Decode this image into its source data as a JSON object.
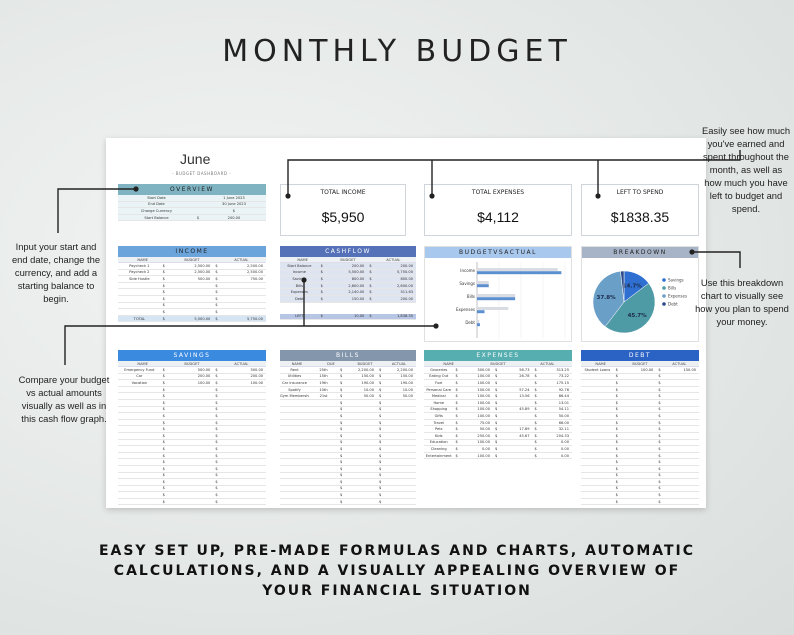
{
  "title": "MONTHLY BUDGET",
  "sheet": {
    "month": "June",
    "subtitle": "- BUDGET DASHBOARD -",
    "overview": {
      "header": "OVERVIEW",
      "rows": [
        {
          "label": "Start Date",
          "value": "1 June 2023",
          "sym": ""
        },
        {
          "label": "End Date",
          "value": "30 June 2023",
          "sym": ""
        },
        {
          "label": "Change Currency",
          "value": "$",
          "sym": ""
        },
        {
          "label": "Start Balance",
          "value": "200.00",
          "sym": "$"
        }
      ]
    },
    "summary": [
      {
        "label": "TOTAL INCOME",
        "value": "$5,950"
      },
      {
        "label": "TOTAL EXPENSES",
        "value": "$4,112"
      },
      {
        "label": "LEFT TO SPEND",
        "value": "$1838.35"
      }
    ],
    "income": {
      "header": "INCOME",
      "cols": [
        "NAME",
        "BUDGET",
        "ACTUAL"
      ],
      "color": "#5b9bd5",
      "rows": [
        [
          "Paycheck 1",
          "$",
          "2,500.00",
          "$",
          "2,500.00"
        ],
        [
          "Paycheck 2",
          "$",
          "2,500.00",
          "$",
          "2,500.00"
        ],
        [
          "Side Hustle",
          "$",
          "500.00",
          "$",
          "750.00"
        ],
        [
          "",
          "$",
          "",
          "$",
          ""
        ],
        [
          "",
          "$",
          "",
          "$",
          ""
        ],
        [
          "",
          "$",
          "",
          "$",
          ""
        ],
        [
          "",
          "$",
          "",
          "$",
          ""
        ],
        [
          "",
          "$",
          "",
          "$",
          ""
        ]
      ],
      "total": [
        "TOTAL",
        "$",
        "5,500.00",
        "$",
        "5,750.00"
      ]
    },
    "cashflow": {
      "header": "CASHFLOW",
      "cols": [
        "NAME",
        "BUDGET",
        "ACTUAL"
      ],
      "color": "#5572b8",
      "rows": [
        [
          "Start Balance",
          "$",
          "200.00",
          "$",
          "200.00"
        ],
        [
          "Income",
          "$",
          "5,500.00",
          "$",
          "5,750.00"
        ],
        [
          "Savings",
          "$",
          "800.00",
          "$",
          "800.00"
        ],
        [
          "Bills",
          "$",
          "2,600.00",
          "$",
          "2,600.00"
        ],
        [
          "Expenses",
          "$",
          "2,140.00",
          "$",
          "511.63"
        ],
        [
          "Debt",
          "$",
          "150.00",
          "$",
          "200.00"
        ]
      ],
      "total": [
        "LEFT",
        "$",
        "10.00",
        "$",
        "1,838.35"
      ]
    },
    "bva": {
      "header": "BUDGETVSACTUAL",
      "chart_data": {
        "type": "bar",
        "orientation": "horizontal",
        "categories": [
          "Income",
          "Savings",
          "Bills",
          "Expenses",
          "Debt"
        ],
        "series": [
          {
            "name": "",
            "values": [
              5500,
              800,
              2600,
              2140,
              150
            ],
            "color": "#d9dde3"
          },
          {
            "name": "",
            "values": [
              5750,
              800,
              2600,
              511.63,
              200
            ],
            "color": "#5b8fd0"
          }
        ],
        "xlim": [
          0,
          6000
        ]
      }
    },
    "breakdown": {
      "header": "BREAKDOWN",
      "chart_data": {
        "type": "pie",
        "labels": [
          "Savings",
          "Bills",
          "Expenses",
          "Debt"
        ],
        "values": [
          14.7,
          45.7,
          37.8,
          1.8
        ],
        "value_labels": [
          "14.7%",
          "45.7%",
          "37.8%",
          ""
        ],
        "colors": [
          "#2f6fd1",
          "#4e9aa5",
          "#6a9fc8",
          "#2c4a8c"
        ]
      }
    },
    "savings": {
      "header": "SAVINGS",
      "cols": [
        "NAME",
        "BUDGET",
        "ACTUAL"
      ],
      "color": "#2d7fd6",
      "rows": [
        [
          "Emergency Fund",
          "$",
          "500.00",
          "$",
          "500.00"
        ],
        [
          "Car",
          "$",
          "200.00",
          "$",
          "200.00"
        ],
        [
          "Vacation",
          "$",
          "100.00",
          "$",
          "100.00"
        ]
      ],
      "blank": "$"
    },
    "bills": {
      "header": "BILLS",
      "cols": [
        "NAME",
        "DUE",
        "BUDGET",
        "ACTUAL"
      ],
      "color": "#7f93a9",
      "rows": [
        [
          "Rent",
          "25th",
          "$",
          "2,200.00",
          "$",
          "2,200.00"
        ],
        [
          "Utilities",
          "15th",
          "$",
          "150.00",
          "$",
          "150.00"
        ],
        [
          "Car Insurance",
          "19th",
          "$",
          "190.00",
          "$",
          "190.00"
        ],
        [
          "Spotify",
          "10th",
          "$",
          "10.00",
          "$",
          "10.00"
        ],
        [
          "Gym Membership",
          "21st",
          "$",
          "50.00",
          "$",
          "50.00"
        ]
      ],
      "blank": "$"
    },
    "expenses": {
      "header": "EXPENSES",
      "cols": [
        "NAME",
        "BUDGET",
        "ACTUAL"
      ],
      "color": "#4aa3a5",
      "rows": [
        [
          "Groceries",
          "$",
          "300.00",
          "$",
          "56.73",
          "$",
          "313.25"
        ],
        [
          "Eating Out",
          "$",
          "100.00",
          "$",
          "26.78",
          "$",
          "73.22"
        ],
        [
          "Fuel",
          "$",
          "100.00",
          "$",
          "",
          "$",
          "175.15"
        ],
        [
          "Personal Care",
          "$",
          "100.00",
          "$",
          "57.24",
          "$",
          "92.76"
        ],
        [
          "Medical",
          "$",
          "100.00",
          "$",
          "13.56",
          "$",
          "86.44"
        ],
        [
          "Home",
          "$",
          "100.00",
          "$",
          "",
          "$",
          "13.01"
        ],
        [
          "Shopping",
          "$",
          "100.00",
          "$",
          "45.89",
          "$",
          "54.11"
        ],
        [
          "Gifts",
          "$",
          "100.00",
          "$",
          "",
          "$",
          "50.00"
        ],
        [
          "Travel",
          "$",
          "75.00",
          "$",
          "",
          "$",
          "66.00"
        ],
        [
          "Pets",
          "$",
          "50.00",
          "$",
          "17.89",
          "$",
          "32.11"
        ],
        [
          "Kids",
          "$",
          "250.00",
          "$",
          "45.67",
          "$",
          "204.33"
        ],
        [
          "Education",
          "$",
          "100.00",
          "$",
          "",
          "$",
          "0.00"
        ],
        [
          "Cleaning",
          "$",
          "0.00",
          "$",
          "",
          "$",
          "0.00"
        ],
        [
          "Entertainment",
          "$",
          "100.00",
          "$",
          "",
          "$",
          "0.00"
        ]
      ]
    },
    "debt": {
      "header": "DEBT",
      "cols": [
        "NAME",
        "BUDGET",
        "ACTUAL"
      ],
      "color": "#2b63c5",
      "rows": [
        [
          "Student Loans",
          "$",
          "100.00",
          "$",
          "150.00"
        ]
      ],
      "blank": "$"
    }
  },
  "notes": {
    "top_right": "Easily see how much you've earned and spent throughout the month, as well as how much you have left to budget and spend.",
    "left_mid": "Input your start and end date, change the currency, and add a starting balance to begin.",
    "right_mid": "Use this breakdown chart to visually see how you plan to spend your money.",
    "left_low": "Compare your budget vs actual amounts visually as well as in this cash flow graph."
  },
  "bottom": "EASY SET UP, PRE-MADE FORMULAS AND CHARTS, AUTOMATIC CALCULATIONS, AND A VISUALLY APPEALING OVERVIEW OF YOUR FINANCIAL SITUATION"
}
